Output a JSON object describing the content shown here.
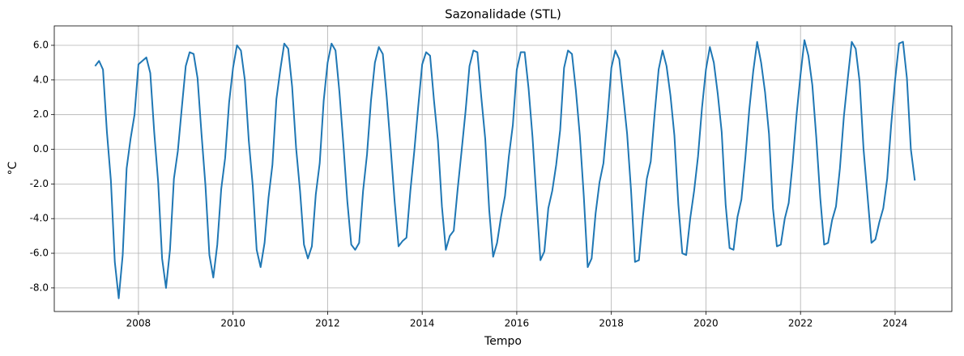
{
  "chart_data": {
    "type": "line",
    "title": "Sazonalidade (STL)",
    "xlabel": "Tempo",
    "ylabel": "°C",
    "x": [
      2007.083,
      2007.167,
      2007.25,
      2007.333,
      2007.417,
      2007.5,
      2007.583,
      2007.667,
      2007.75,
      2007.833,
      2007.917,
      2008,
      2008.083,
      2008.167,
      2008.25,
      2008.333,
      2008.417,
      2008.5,
      2008.583,
      2008.667,
      2008.75,
      2008.833,
      2008.917,
      2009,
      2009.083,
      2009.167,
      2009.25,
      2009.333,
      2009.417,
      2009.5,
      2009.583,
      2009.667,
      2009.75,
      2009.833,
      2009.917,
      2010,
      2010.083,
      2010.167,
      2010.25,
      2010.333,
      2010.417,
      2010.5,
      2010.583,
      2010.667,
      2010.75,
      2010.833,
      2010.917,
      2011,
      2011.083,
      2011.167,
      2011.25,
      2011.333,
      2011.417,
      2011.5,
      2011.583,
      2011.667,
      2011.75,
      2011.833,
      2011.917,
      2012,
      2012.083,
      2012.167,
      2012.25,
      2012.333,
      2012.417,
      2012.5,
      2012.583,
      2012.667,
      2012.75,
      2012.833,
      2012.917,
      2013,
      2013.083,
      2013.167,
      2013.25,
      2013.333,
      2013.417,
      2013.5,
      2013.583,
      2013.667,
      2013.75,
      2013.833,
      2013.917,
      2014,
      2014.083,
      2014.167,
      2014.25,
      2014.333,
      2014.417,
      2014.5,
      2014.583,
      2014.667,
      2014.75,
      2014.833,
      2014.917,
      2015,
      2015.083,
      2015.167,
      2015.25,
      2015.333,
      2015.417,
      2015.5,
      2015.583,
      2015.667,
      2015.75,
      2015.833,
      2015.917,
      2016,
      2016.083,
      2016.167,
      2016.25,
      2016.333,
      2016.417,
      2016.5,
      2016.583,
      2016.667,
      2016.75,
      2016.833,
      2016.917,
      2017,
      2017.083,
      2017.167,
      2017.25,
      2017.333,
      2017.417,
      2017.5,
      2017.583,
      2017.667,
      2017.75,
      2017.833,
      2017.917,
      2018,
      2018.083,
      2018.167,
      2018.25,
      2018.333,
      2018.417,
      2018.5,
      2018.583,
      2018.667,
      2018.75,
      2018.833,
      2018.917,
      2019,
      2019.083,
      2019.167,
      2019.25,
      2019.333,
      2019.417,
      2019.5,
      2019.583,
      2019.667,
      2019.75,
      2019.833,
      2019.917,
      2020,
      2020.083,
      2020.167,
      2020.25,
      2020.333,
      2020.417,
      2020.5,
      2020.583,
      2020.667,
      2020.75,
      2020.833,
      2020.917,
      2021,
      2021.083,
      2021.167,
      2021.25,
      2021.333,
      2021.417,
      2021.5,
      2021.583,
      2021.667,
      2021.75,
      2021.833,
      2021.917,
      2022,
      2022.083,
      2022.167,
      2022.25,
      2022.333,
      2022.417,
      2022.5,
      2022.583,
      2022.667,
      2022.75,
      2022.833,
      2022.917,
      2023,
      2023.083,
      2023.167,
      2023.25,
      2023.333,
      2023.417,
      2023.5,
      2023.583,
      2023.667,
      2023.75,
      2023.833,
      2023.917,
      2024,
      2024.083,
      2024.167,
      2024.25,
      2024.333,
      2024.417
    ],
    "series": [
      {
        "color": "#1f77b4",
        "values": [
          4.8,
          5.1,
          4.6,
          1.0,
          -1.8,
          -6.5,
          -8.6,
          -6.1,
          -1.1,
          0.6,
          2.0,
          4.9,
          5.1,
          5.3,
          4.4,
          1.0,
          -1.9,
          -6.3,
          -8.0,
          -5.8,
          -1.7,
          -0.1,
          2.4,
          4.8,
          5.6,
          5.5,
          4.1,
          0.9,
          -2.1,
          -6.1,
          -7.4,
          -5.5,
          -2.3,
          -0.5,
          2.7,
          4.7,
          6.0,
          5.7,
          4.0,
          0.5,
          -2.1,
          -5.8,
          -6.8,
          -5.4,
          -2.8,
          -0.9,
          2.9,
          4.6,
          6.1,
          5.8,
          3.6,
          0.1,
          -2.4,
          -5.5,
          -6.3,
          -5.6,
          -2.6,
          -0.8,
          2.8,
          5.0,
          6.1,
          5.7,
          3.3,
          0.3,
          -3.0,
          -5.5,
          -5.8,
          -5.4,
          -2.4,
          -0.3,
          2.8,
          5.0,
          5.9,
          5.5,
          3.0,
          0.1,
          -3.0,
          -5.6,
          -5.3,
          -5.1,
          -2.4,
          -0.1,
          2.5,
          4.9,
          5.6,
          5.4,
          2.8,
          0.5,
          -3.3,
          -5.8,
          -5.0,
          -4.7,
          -2.3,
          -0.1,
          2.2,
          4.8,
          5.7,
          5.6,
          3.0,
          0.6,
          -3.5,
          -6.2,
          -5.4,
          -3.9,
          -2.7,
          -0.4,
          1.4,
          4.6,
          5.6,
          5.6,
          3.5,
          0.7,
          -2.9,
          -6.4,
          -5.9,
          -3.4,
          -2.4,
          -0.9,
          1.1,
          4.7,
          5.7,
          5.5,
          3.4,
          0.8,
          -2.7,
          -6.8,
          -6.3,
          -3.7,
          -1.9,
          -0.8,
          1.8,
          4.7,
          5.7,
          5.2,
          3.1,
          0.9,
          -2.4,
          -6.5,
          -6.4,
          -3.9,
          -1.7,
          -0.7,
          2.1,
          4.6,
          5.7,
          4.8,
          3.1,
          0.8,
          -3.2,
          -6.0,
          -6.1,
          -4.0,
          -2.4,
          -0.4,
          2.4,
          4.6,
          5.9,
          5.0,
          3.2,
          1.0,
          -3.2,
          -5.7,
          -5.8,
          -3.9,
          -2.9,
          -0.5,
          2.3,
          4.5,
          6.2,
          5.0,
          3.3,
          0.9,
          -3.4,
          -5.6,
          -5.5,
          -4.0,
          -3.1,
          -0.8,
          2.0,
          4.3,
          6.3,
          5.4,
          3.7,
          0.7,
          -2.8,
          -5.5,
          -5.4,
          -4.1,
          -3.3,
          -1.1,
          1.9,
          4.1,
          6.2,
          5.8,
          3.9,
          0.0,
          -2.7,
          -5.4,
          -5.2,
          -4.2,
          -3.4,
          -1.7,
          1.4,
          4.0,
          6.1,
          6.2,
          4.1,
          0.0,
          -1.8
        ]
      }
    ],
    "xlim": [
      2006.22,
      2025.2
    ],
    "ylim": [
      -9.36,
      7.12
    ],
    "xticks": [
      2008,
      2010,
      2012,
      2014,
      2016,
      2018,
      2020,
      2022,
      2024
    ],
    "yticks": [
      {
        "value": -8,
        "label": "-8.0"
      },
      {
        "value": -6,
        "label": "-6.0"
      },
      {
        "value": -4,
        "label": "-4.0"
      },
      {
        "value": -2,
        "label": "-2.0"
      },
      {
        "value": 0,
        "label": "0.0"
      },
      {
        "value": 2,
        "label": "2.0"
      },
      {
        "value": 4,
        "label": "4.0"
      },
      {
        "value": 6,
        "label": "6.0"
      }
    ],
    "grid": true
  }
}
